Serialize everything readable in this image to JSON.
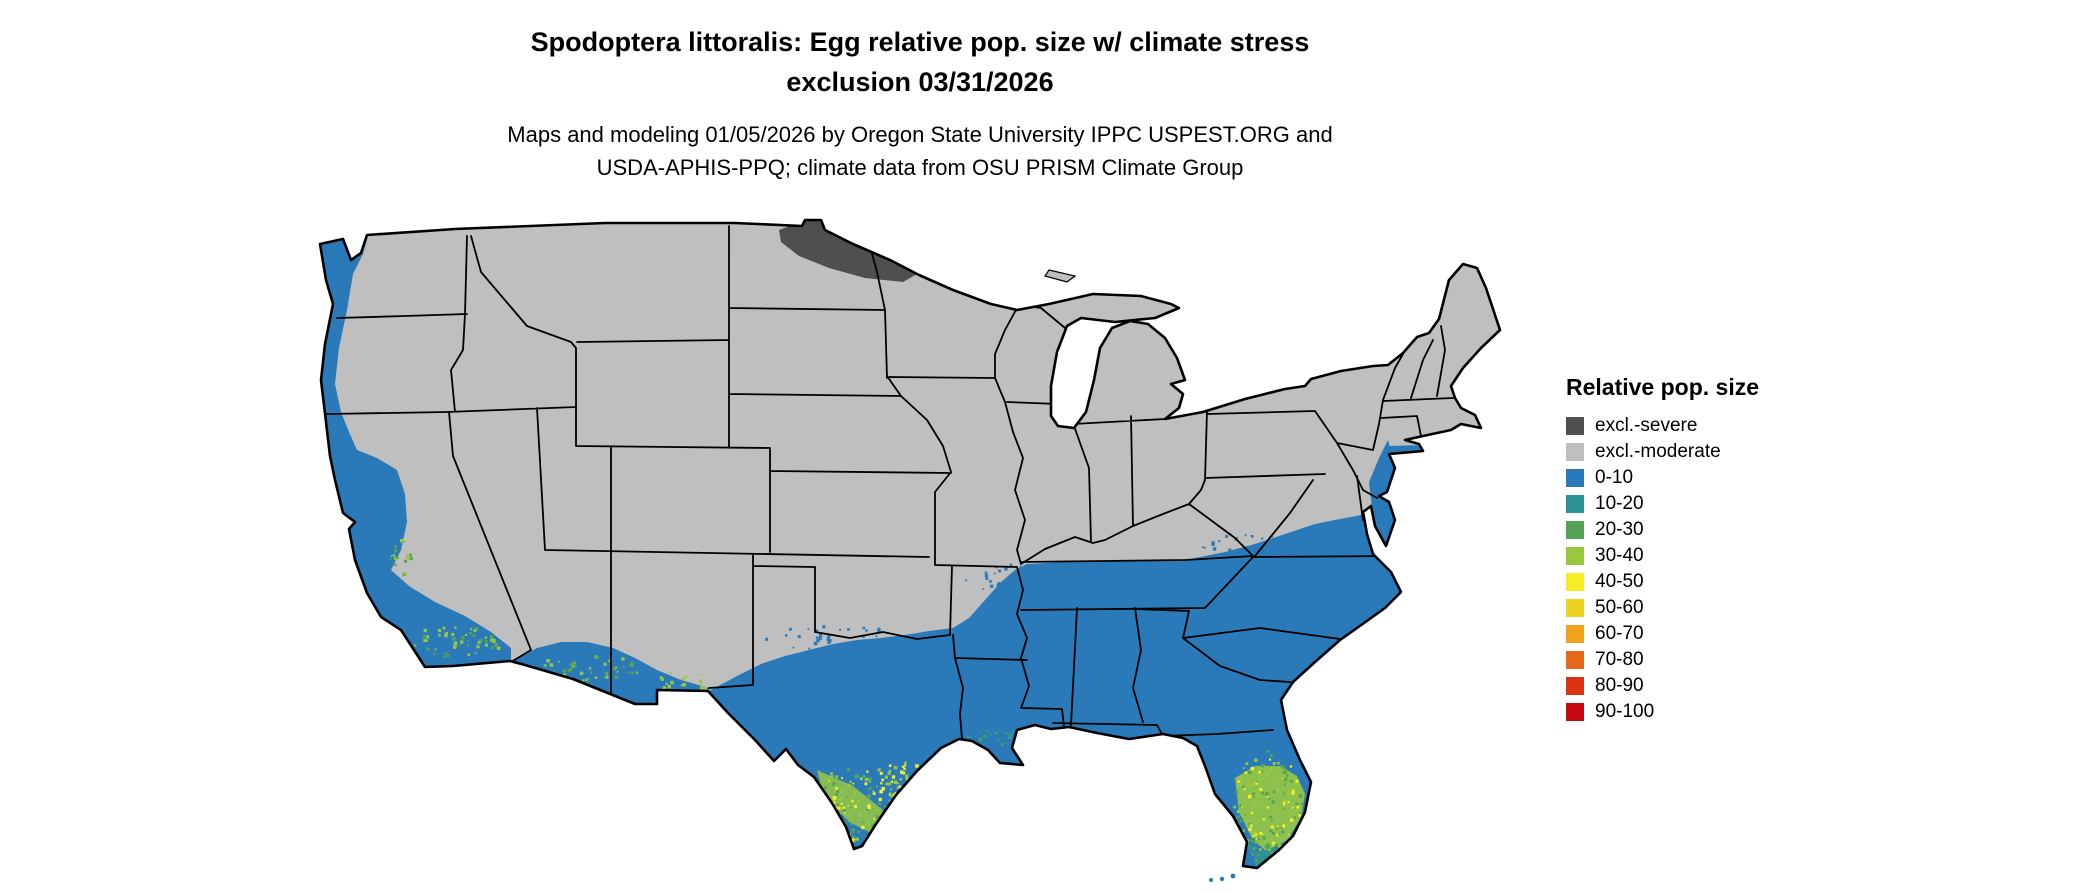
{
  "title": {
    "line1": "Spodoptera littoralis: Egg relative pop. size w/ climate stress",
    "line2": "exclusion 03/31/2026"
  },
  "subtitle": {
    "line1": "Maps and modeling 01/05/2026 by Oregon State University IPPC USPEST.ORG and",
    "line2": "USDA-APHIS-PPQ; climate data from OSU PRISM Climate Group"
  },
  "map": {
    "region": "conterminous-united-states",
    "background": "#ffffff",
    "state_border_color": "#000000",
    "base_fill_key": "excl-moderate"
  },
  "legend": {
    "title": "Relative pop. size",
    "items": [
      {
        "key": "excl-severe",
        "label": "excl.-severe",
        "color": "#4f4f4f"
      },
      {
        "key": "excl-moderate",
        "label": "excl.-moderate",
        "color": "#bfbfbf"
      },
      {
        "key": "0-10",
        "label": "0-10",
        "color": "#2a7ab9"
      },
      {
        "key": "10-20",
        "label": "10-20",
        "color": "#2f9292"
      },
      {
        "key": "20-30",
        "label": "20-30",
        "color": "#55a356"
      },
      {
        "key": "30-40",
        "label": "30-40",
        "color": "#98c841"
      },
      {
        "key": "40-50",
        "label": "40-50",
        "color": "#f5ee27"
      },
      {
        "key": "50-60",
        "label": "50-60",
        "color": "#eed11f"
      },
      {
        "key": "60-70",
        "label": "60-70",
        "color": "#f0a21e"
      },
      {
        "key": "70-80",
        "label": "70-80",
        "color": "#e5671c"
      },
      {
        "key": "80-90",
        "label": "80-90",
        "color": "#dc3413"
      },
      {
        "key": "90-100",
        "label": "90-100",
        "color": "#c40a0e"
      }
    ]
  }
}
